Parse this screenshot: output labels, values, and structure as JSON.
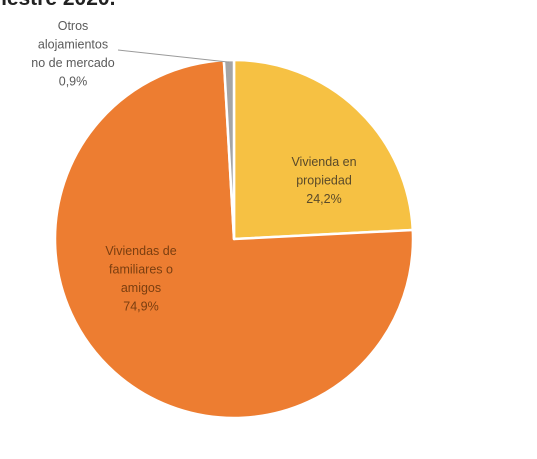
{
  "title_fragment": "nestre 2020.",
  "chart_data": {
    "type": "pie",
    "title": "nestre 2020.",
    "slices": [
      {
        "name": "Vivienda en propiedad",
        "label_lines": [
          "Vivienda en",
          "propiedad"
        ],
        "value": 24.2,
        "value_text": "24,2%",
        "color": "#F6C143",
        "label_color": "#5a4a2a"
      },
      {
        "name": "Viviendas de familiares o amigos",
        "label_lines": [
          "Viviendas de",
          "familiares o",
          "amigos"
        ],
        "value": 74.9,
        "value_text": "74,9%",
        "color": "#ED7D31",
        "label_color": "#7a3e10"
      },
      {
        "name": "Otros alojamientos no de mercado",
        "label_lines": [
          "Otros",
          "alojamientos",
          "no de mercado"
        ],
        "value": 0.9,
        "value_text": "0,9%",
        "color": "#A5A5A5",
        "label_color": "#5a5a5a"
      }
    ],
    "legend": "none"
  }
}
